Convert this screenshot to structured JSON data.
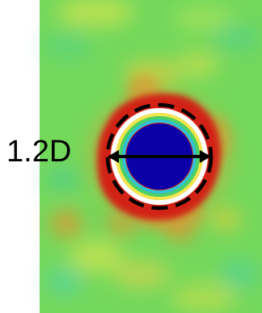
{
  "annotation": {
    "label": "1.2D"
  },
  "colors": {
    "background": "#ffffff",
    "field_green": "#74d85b",
    "field_yellow": "#f1e84d",
    "field_orange": "#ef8b2b",
    "high_red": "#d22218",
    "core_blue": "#0b00a8",
    "ring_white": "#ffffff",
    "dash_circle": "#000000",
    "dimension_arrow": "#000000"
  }
}
